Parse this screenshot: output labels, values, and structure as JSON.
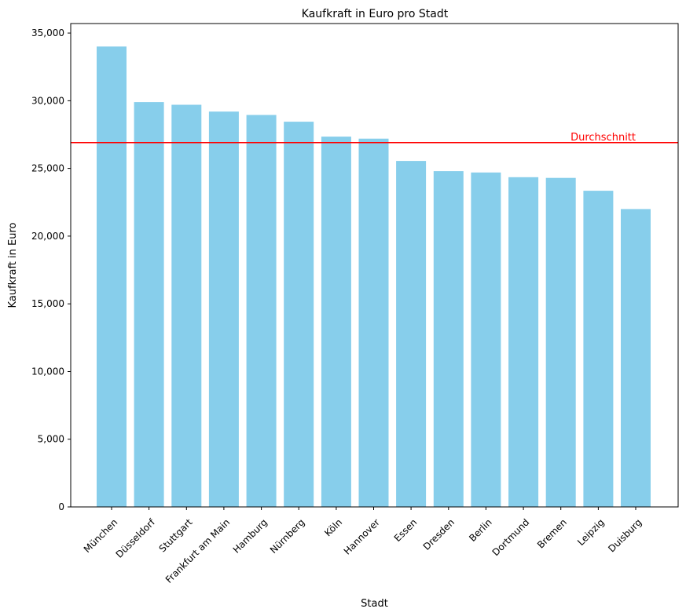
{
  "chart_data": {
    "type": "bar",
    "title": "Kaufkraft in Euro pro Stadt",
    "xlabel": "Stadt",
    "ylabel": "Kaufkraft in Euro",
    "categories": [
      "München",
      "Düsseldorf",
      "Stuttgart",
      "Frankfurt am Main",
      "Hamburg",
      "Nürnberg",
      "Köln",
      "Hannover",
      "Essen",
      "Dresden",
      "Berlin",
      "Dortmund",
      "Bremen",
      "Leipzig",
      "Duisburg"
    ],
    "values": [
      34000,
      29900,
      29700,
      29200,
      28950,
      28450,
      27350,
      27200,
      25550,
      24800,
      24700,
      24350,
      24300,
      23350,
      22000
    ],
    "ylim": [
      0,
      35700
    ],
    "yticks": [
      0,
      5000,
      10000,
      15000,
      20000,
      25000,
      30000,
      35000
    ],
    "ytick_labels": [
      "0",
      "5,000",
      "10,000",
      "15,000",
      "20,000",
      "25,000",
      "30,000",
      "35,000"
    ],
    "bar_color": "#87ceeb",
    "reference_line": {
      "label": "Durchschnitt",
      "value": 26900,
      "color": "#ff0000"
    },
    "grid": false,
    "legend": "none"
  }
}
